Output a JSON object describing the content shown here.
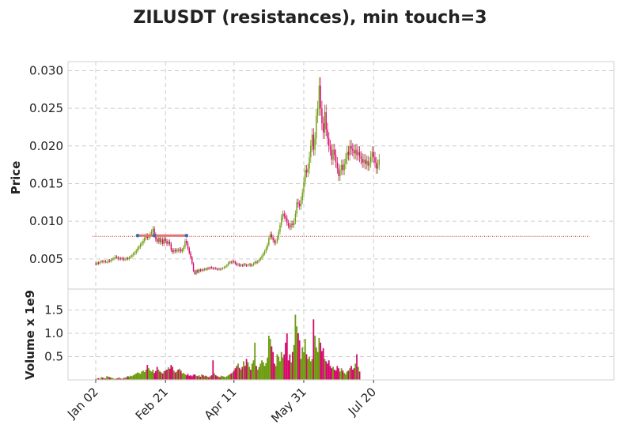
{
  "chart_data": [
    {
      "type": "candlestick",
      "title": "ZILUSDT (resistances), min touch=3",
      "ylabel": "Price",
      "ylim": [
        0.001,
        0.0312
      ],
      "yticks": [
        "0.005",
        "0.010",
        "0.015",
        "0.020",
        "0.025",
        "0.030"
      ],
      "ytick_values": [
        0.005,
        0.01,
        0.015,
        0.02,
        0.025,
        0.03
      ],
      "grid": true,
      "colors": {
        "up": "#6c9b0f",
        "down": "#d6086b",
        "resistance": "#e57373",
        "touch": "#3b6eb5",
        "threshold": "#c62828"
      },
      "resistance": {
        "level": 0.0081,
        "start": "Feb 01",
        "end": "Mar 08"
      },
      "touch_points": [
        {
          "date": "Feb 01",
          "price": 0.0081
        },
        {
          "date": "Feb 13",
          "price": 0.0081
        },
        {
          "date": "Mar 08",
          "price": 0.0081
        }
      ],
      "threshold_line": 0.008,
      "candles": [
        [
          "Jan 02",
          0.0044,
          0.0043
        ],
        [
          "Jan 03",
          0.0043,
          0.0045
        ],
        [
          "Jan 04",
          0.0045,
          0.0044
        ],
        [
          "Jan 05",
          0.0044,
          0.0046
        ],
        [
          "Jan 06",
          0.0046,
          0.0047
        ],
        [
          "Jan 07",
          0.0047,
          0.0046
        ],
        [
          "Jan 08",
          0.0046,
          0.0047
        ],
        [
          "Jan 09",
          0.0047,
          0.0046
        ],
        [
          "Jan 10",
          0.0046,
          0.0046
        ],
        [
          "Jan 11",
          0.0046,
          0.0048
        ],
        [
          "Jan 12",
          0.0048,
          0.0047
        ],
        [
          "Jan 13",
          0.0047,
          0.0049
        ],
        [
          "Jan 14",
          0.0049,
          0.005
        ],
        [
          "Jan 15",
          0.005,
          0.0051
        ],
        [
          "Jan 16",
          0.0051,
          0.0053
        ],
        [
          "Jan 17",
          0.0053,
          0.0052
        ],
        [
          "Jan 18",
          0.0052,
          0.005
        ],
        [
          "Jan 19",
          0.005,
          0.0051
        ],
        [
          "Jan 20",
          0.0051,
          0.005
        ],
        [
          "Jan 21",
          0.005,
          0.0051
        ],
        [
          "Jan 22",
          0.0051,
          0.0049
        ],
        [
          "Jan 23",
          0.0049,
          0.005
        ],
        [
          "Jan 24",
          0.005,
          0.0051
        ],
        [
          "Jan 25",
          0.0051,
          0.005
        ],
        [
          "Jan 26",
          0.005,
          0.0052
        ],
        [
          "Jan 27",
          0.0052,
          0.0053
        ],
        [
          "Jan 28",
          0.0053,
          0.0055
        ],
        [
          "Jan 29",
          0.0055,
          0.0057
        ],
        [
          "Jan 30",
          0.0057,
          0.0058
        ],
        [
          "Jan 31",
          0.0058,
          0.0061
        ],
        [
          "Feb 01",
          0.0061,
          0.0064
        ],
        [
          "Feb 02",
          0.0064,
          0.0066
        ],
        [
          "Feb 03",
          0.0066,
          0.0069
        ],
        [
          "Feb 04",
          0.0069,
          0.0071
        ],
        [
          "Feb 05",
          0.0071,
          0.0074
        ],
        [
          "Feb 06",
          0.0074,
          0.0078
        ],
        [
          "Feb 07",
          0.0078,
          0.0081
        ],
        [
          "Feb 08",
          0.0081,
          0.0078
        ],
        [
          "Feb 09",
          0.0078,
          0.008
        ],
        [
          "Feb 10",
          0.008,
          0.0083
        ],
        [
          "Feb 11",
          0.0083,
          0.0086
        ],
        [
          "Feb 12",
          0.0086,
          0.009
        ],
        [
          "Feb 13",
          0.009,
          0.0082
        ],
        [
          "Feb 14",
          0.0082,
          0.0076
        ],
        [
          "Feb 15",
          0.0076,
          0.0073
        ],
        [
          "Feb 16",
          0.0073,
          0.0078
        ],
        [
          "Feb 17",
          0.0078,
          0.0072
        ],
        [
          "Feb 18",
          0.0072,
          0.0076
        ],
        [
          "Feb 19",
          0.0076,
          0.007
        ],
        [
          "Feb 20",
          0.007,
          0.0077
        ],
        [
          "Feb 21",
          0.0077,
          0.0074
        ],
        [
          "Feb 22",
          0.0074,
          0.007
        ],
        [
          "Feb 23",
          0.007,
          0.0073
        ],
        [
          "Feb 24",
          0.0073,
          0.007
        ],
        [
          "Feb 25",
          0.007,
          0.0062
        ],
        [
          "Feb 26",
          0.0062,
          0.0059
        ],
        [
          "Feb 27",
          0.0059,
          0.0062
        ],
        [
          "Feb 28",
          0.0062,
          0.006
        ],
        [
          "Mar 01",
          0.006,
          0.0062
        ],
        [
          "Mar 02",
          0.0062,
          0.0061
        ],
        [
          "Mar 03",
          0.0061,
          0.0063
        ],
        [
          "Mar 04",
          0.0063,
          0.006
        ],
        [
          "Mar 05",
          0.006,
          0.0062
        ],
        [
          "Mar 06",
          0.0062,
          0.0066
        ],
        [
          "Mar 07",
          0.0066,
          0.0074
        ],
        [
          "Mar 08",
          0.0074,
          0.0071
        ],
        [
          "Mar 09",
          0.0071,
          0.0064
        ],
        [
          "Mar 10",
          0.0064,
          0.0058
        ],
        [
          "Mar 11",
          0.0058,
          0.0052
        ],
        [
          "Mar 12",
          0.0052,
          0.0044
        ],
        [
          "Mar 13",
          0.0044,
          0.0034
        ],
        [
          "Mar 14",
          0.0034,
          0.003
        ],
        [
          "Mar 15",
          0.003,
          0.0035
        ],
        [
          "Mar 16",
          0.0035,
          0.0032
        ],
        [
          "Mar 17",
          0.0032,
          0.0036
        ],
        [
          "Mar 18",
          0.0036,
          0.0034
        ],
        [
          "Mar 19",
          0.0034,
          0.0036
        ],
        [
          "Mar 20",
          0.0036,
          0.0035
        ],
        [
          "Mar 21",
          0.0035,
          0.0037
        ],
        [
          "Mar 22",
          0.0037,
          0.0036
        ],
        [
          "Mar 23",
          0.0036,
          0.0038
        ],
        [
          "Mar 24",
          0.0038,
          0.0037
        ],
        [
          "Mar 25",
          0.0037,
          0.0039
        ],
        [
          "Mar 26",
          0.0039,
          0.0038
        ],
        [
          "Mar 27",
          0.0038,
          0.0037
        ],
        [
          "Mar 28",
          0.0037,
          0.0038
        ],
        [
          "Mar 29",
          0.0038,
          0.0037
        ],
        [
          "Mar 30",
          0.0037,
          0.0036
        ],
        [
          "Mar 31",
          0.0036,
          0.0037
        ],
        [
          "Apr 01",
          0.0037,
          0.0036
        ],
        [
          "Apr 02",
          0.0036,
          0.0037
        ],
        [
          "Apr 03",
          0.0037,
          0.0038
        ],
        [
          "Apr 04",
          0.0038,
          0.0039
        ],
        [
          "Apr 05",
          0.0039,
          0.004
        ],
        [
          "Apr 06",
          0.004,
          0.0042
        ],
        [
          "Apr 07",
          0.0042,
          0.0045
        ],
        [
          "Apr 08",
          0.0045,
          0.0046
        ],
        [
          "Apr 09",
          0.0046,
          0.0045
        ],
        [
          "Apr 10",
          0.0045,
          0.0047
        ],
        [
          "Apr 11",
          0.0047,
          0.0046
        ],
        [
          "Apr 12",
          0.0046,
          0.0044
        ],
        [
          "Apr 13",
          0.0044,
          0.0042
        ],
        [
          "Apr 14",
          0.0042,
          0.0043
        ],
        [
          "Apr 15",
          0.0043,
          0.0041
        ],
        [
          "Apr 16",
          0.0041,
          0.0042
        ],
        [
          "Apr 17",
          0.0042,
          0.0041
        ],
        [
          "Apr 18",
          0.0041,
          0.0043
        ],
        [
          "Apr 19",
          0.0043,
          0.0042
        ],
        [
          "Apr 20",
          0.0042,
          0.0041
        ],
        [
          "Apr 21",
          0.0041,
          0.0042
        ],
        [
          "Apr 22",
          0.0042,
          0.0043
        ],
        [
          "Apr 23",
          0.0043,
          0.0041
        ],
        [
          "Apr 24",
          0.0041,
          0.0042
        ],
        [
          "Apr 25",
          0.0042,
          0.0044
        ],
        [
          "Apr 26",
          0.0044,
          0.0046
        ],
        [
          "Apr 27",
          0.0046,
          0.0045
        ],
        [
          "Apr 28",
          0.0045,
          0.0047
        ],
        [
          "Apr 29",
          0.0047,
          0.0049
        ],
        [
          "Apr 30",
          0.0049,
          0.0051
        ],
        [
          "May 01",
          0.0051,
          0.0054
        ],
        [
          "May 02",
          0.0054,
          0.0057
        ],
        [
          "May 03",
          0.0057,
          0.006
        ],
        [
          "May 04",
          0.006,
          0.0064
        ],
        [
          "May 05",
          0.0064,
          0.0069
        ],
        [
          "May 06",
          0.0069,
          0.0078
        ],
        [
          "May 07",
          0.0078,
          0.0083
        ],
        [
          "May 08",
          0.0083,
          0.0079
        ],
        [
          "May 09",
          0.0079,
          0.0075
        ],
        [
          "May 10",
          0.0075,
          0.0071
        ],
        [
          "May 11",
          0.0071,
          0.0073
        ],
        [
          "May 12",
          0.0073,
          0.0078
        ],
        [
          "May 13",
          0.0078,
          0.0086
        ],
        [
          "May 14",
          0.0086,
          0.0095
        ],
        [
          "May 15",
          0.0095,
          0.0105
        ],
        [
          "May 16",
          0.0105,
          0.011
        ],
        [
          "May 17",
          0.011,
          0.0107
        ],
        [
          "May 18",
          0.0107,
          0.0104
        ],
        [
          "May 19",
          0.0104,
          0.0098
        ],
        [
          "May 20",
          0.0098,
          0.0094
        ],
        [
          "May 21",
          0.0094,
          0.0092
        ],
        [
          "May 22",
          0.0092,
          0.0097
        ],
        [
          "May 23",
          0.0097,
          0.0095
        ],
        [
          "May 24",
          0.0095,
          0.01
        ],
        [
          "May 25",
          0.01,
          0.011
        ],
        [
          "May 26",
          0.011,
          0.0125
        ],
        [
          "May 27",
          0.0125,
          0.0123
        ],
        [
          "May 28",
          0.0123,
          0.012
        ],
        [
          "May 29",
          0.012,
          0.0128
        ],
        [
          "May 30",
          0.0128,
          0.0138
        ],
        [
          "May 31",
          0.0138,
          0.0152
        ],
        [
          "Jun 01",
          0.0152,
          0.0168
        ],
        [
          "Jun 02",
          0.0168,
          0.0165
        ],
        [
          "Jun 03",
          0.0165,
          0.017
        ],
        [
          "Jun 04",
          0.017,
          0.0185
        ],
        [
          "Jun 05",
          0.0185,
          0.02
        ],
        [
          "Jun 06",
          0.02,
          0.0215
        ],
        [
          "Jun 07",
          0.0215,
          0.0195
        ],
        [
          "Jun 08",
          0.0195,
          0.021
        ],
        [
          "Jun 09",
          0.021,
          0.024
        ],
        [
          "Jun 10",
          0.024,
          0.025
        ],
        [
          "Jun 11",
          0.025,
          0.028
        ],
        [
          "Jun 12",
          0.028,
          0.025
        ],
        [
          "Jun 13",
          0.025,
          0.023
        ],
        [
          "Jun 14",
          0.023,
          0.0218
        ],
        [
          "Jun 15",
          0.0218,
          0.0245
        ],
        [
          "Jun 16",
          0.0245,
          0.0222
        ],
        [
          "Jun 17",
          0.0222,
          0.021
        ],
        [
          "Jun 18",
          0.021,
          0.02
        ],
        [
          "Jun 19",
          0.02,
          0.0195
        ],
        [
          "Jun 20",
          0.0195,
          0.0182
        ],
        [
          "Jun 21",
          0.0182,
          0.0195
        ],
        [
          "Jun 22",
          0.0195,
          0.0188
        ],
        [
          "Jun 23",
          0.0188,
          0.0178
        ],
        [
          "Jun 24",
          0.0178,
          0.017
        ],
        [
          "Jun 25",
          0.017,
          0.016
        ],
        [
          "Jun 26",
          0.016,
          0.0168
        ],
        [
          "Jun 27",
          0.0168,
          0.0175
        ],
        [
          "Jun 28",
          0.0175,
          0.0168
        ],
        [
          "Jun 29",
          0.0168,
          0.0176
        ],
        [
          "Jun 30",
          0.0176,
          0.0183
        ],
        [
          "Jul 01",
          0.0183,
          0.0192
        ],
        [
          "Jul 02",
          0.0192,
          0.0188
        ],
        [
          "Jul 03",
          0.0188,
          0.02
        ],
        [
          "Jul 04",
          0.02,
          0.0196
        ],
        [
          "Jul 05",
          0.0196,
          0.0194
        ],
        [
          "Jul 06",
          0.0194,
          0.019
        ],
        [
          "Jul 07",
          0.019,
          0.0195
        ],
        [
          "Jul 08",
          0.0195,
          0.0188
        ],
        [
          "Jul 09",
          0.0188,
          0.0192
        ],
        [
          "Jul 10",
          0.0192,
          0.0186
        ],
        [
          "Jul 11",
          0.0186,
          0.0183
        ],
        [
          "Jul 12",
          0.0183,
          0.0178
        ],
        [
          "Jul 13",
          0.0178,
          0.0182
        ],
        [
          "Jul 14",
          0.0182,
          0.0176
        ],
        [
          "Jul 15",
          0.0176,
          0.018
        ],
        [
          "Jul 16",
          0.018,
          0.0174
        ],
        [
          "Jul 17",
          0.0174,
          0.0178
        ],
        [
          "Jul 18",
          0.0178,
          0.0186
        ],
        [
          "Jul 19",
          0.0186,
          0.0192
        ],
        [
          "Jul 20",
          0.0192,
          0.0185
        ],
        [
          "Jul 21",
          0.0185,
          0.0178
        ],
        [
          "Jul 22",
          0.0178,
          0.017
        ],
        [
          "Jul 23",
          0.017,
          0.0175
        ],
        [
          "Jul 24",
          0.0175,
          0.0182
        ]
      ]
    },
    {
      "type": "bar",
      "ylabel": "Volume x 1e9",
      "ylim": [
        0,
        1.95
      ],
      "yticks": [
        "0.5",
        "1.0",
        "1.5"
      ],
      "ytick_values": [
        0.5,
        1.0,
        1.5
      ],
      "xticks": [
        "Jan 02",
        "Feb 21",
        "Apr 11",
        "May 31",
        "Jul 20"
      ],
      "grid": true,
      "volumes": [
        0.02,
        0.03,
        0.04,
        0.02,
        0.06,
        0.05,
        0.04,
        0.03,
        0.08,
        0.07,
        0.06,
        0.05,
        0.04,
        0.03,
        0.02,
        0.03,
        0.04,
        0.05,
        0.03,
        0.02,
        0.04,
        0.05,
        0.06,
        0.08,
        0.07,
        0.09,
        0.08,
        0.1,
        0.12,
        0.14,
        0.16,
        0.15,
        0.13,
        0.18,
        0.2,
        0.17,
        0.22,
        0.32,
        0.25,
        0.2,
        0.18,
        0.22,
        0.15,
        0.19,
        0.28,
        0.22,
        0.18,
        0.16,
        0.14,
        0.19,
        0.2,
        0.22,
        0.27,
        0.24,
        0.32,
        0.28,
        0.2,
        0.16,
        0.18,
        0.22,
        0.24,
        0.2,
        0.14,
        0.15,
        0.12,
        0.1,
        0.13,
        0.09,
        0.1,
        0.08,
        0.11,
        0.12,
        0.09,
        0.08,
        0.1,
        0.07,
        0.12,
        0.1,
        0.08,
        0.09,
        0.07,
        0.06,
        0.08,
        0.1,
        0.42,
        0.14,
        0.1,
        0.08,
        0.07,
        0.06,
        0.09,
        0.08,
        0.07,
        0.06,
        0.08,
        0.1,
        0.12,
        0.14,
        0.16,
        0.2,
        0.25,
        0.3,
        0.35,
        0.26,
        0.22,
        0.28,
        0.4,
        0.3,
        0.45,
        0.38,
        0.28,
        0.22,
        0.35,
        0.42,
        0.8,
        0.3,
        0.22,
        0.28,
        0.35,
        0.42,
        0.38,
        0.3,
        0.36,
        0.48,
        0.95,
        0.88,
        0.72,
        0.6,
        0.35,
        0.3,
        0.55,
        0.5,
        0.4,
        0.6,
        0.48,
        0.55,
        0.8,
        1.0,
        0.42,
        0.55,
        0.38,
        0.6,
        0.75,
        1.4,
        1.15,
        1.0,
        0.85,
        0.45,
        0.7,
        0.6,
        0.88,
        0.55,
        0.45,
        0.5,
        0.4,
        0.45,
        1.3,
        0.95,
        0.7,
        0.6,
        0.9,
        0.8,
        0.62,
        0.68,
        0.45,
        0.4,
        0.35,
        0.42,
        0.3,
        0.25,
        0.28,
        0.22,
        0.2,
        0.3,
        0.25,
        0.18,
        0.25,
        0.2,
        0.15,
        0.12,
        0.18,
        0.2,
        0.25,
        0.3,
        0.22,
        0.25,
        0.35,
        0.55,
        0.28,
        0.18
      ]
    }
  ]
}
